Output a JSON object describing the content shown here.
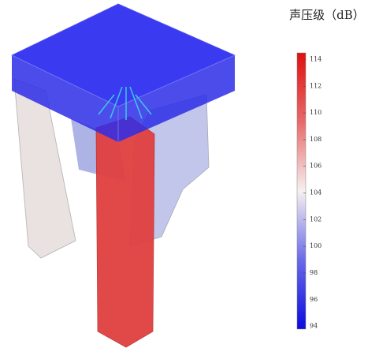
{
  "colorbar": {
    "title": "声压级（dB）",
    "range": [
      93.8,
      114.5
    ],
    "ticks": [
      94,
      96,
      98,
      100,
      102,
      104,
      106,
      108,
      110,
      112,
      114
    ]
  }
}
